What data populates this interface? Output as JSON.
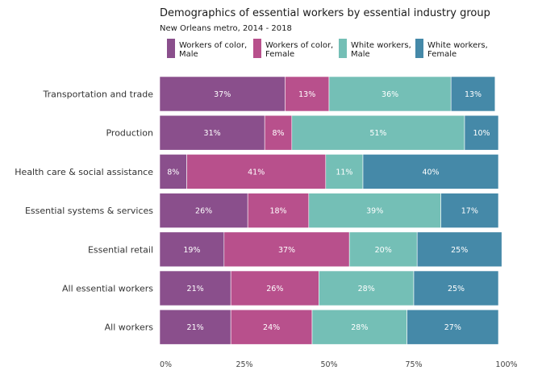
{
  "chart_data": {
    "type": "bar",
    "orientation": "horizontal",
    "stacked": true,
    "title": "Demographics of essential workers by essential industry group",
    "subtitle": "New Orleans metro, 2014 - 2018",
    "xlabel": "",
    "ylabel": "",
    "xlim": [
      0,
      100
    ],
    "x_ticks": [
      "0%",
      "25%",
      "50%",
      "75%",
      "100%"
    ],
    "legend_position": "top",
    "categories": [
      "Transportation and trade",
      "Production",
      "Health care & social assistance",
      "Essential systems & services",
      "Essential retail",
      "All essential workers",
      "All workers"
    ],
    "series": [
      {
        "name_lines": [
          "Workers of color,",
          "Male"
        ],
        "color": "#8a4f8c",
        "values": [
          37,
          31,
          8,
          26,
          19,
          21,
          21
        ]
      },
      {
        "name_lines": [
          "Workers of color,",
          "Female"
        ],
        "color": "#b8508c",
        "values": [
          13,
          8,
          41,
          18,
          37,
          26,
          24
        ]
      },
      {
        "name_lines": [
          "White workers,",
          "Male"
        ],
        "color": "#74bfb6",
        "values": [
          36,
          51,
          11,
          39,
          20,
          28,
          28
        ]
      },
      {
        "name_lines": [
          "White workers,",
          "Female"
        ],
        "color": "#4589a8",
        "values": [
          13,
          10,
          40,
          17,
          25,
          25,
          27
        ]
      }
    ]
  }
}
